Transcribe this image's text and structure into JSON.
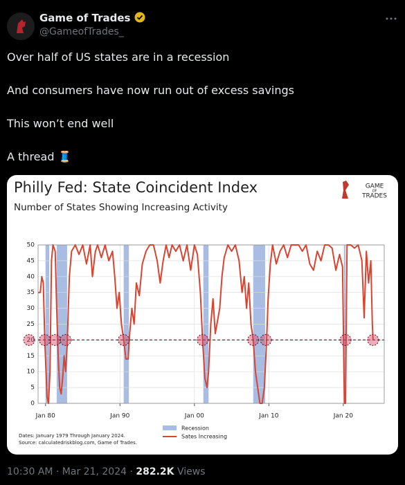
{
  "tweet": {
    "name": "Game of Trades",
    "handle": "@GameofTrades_",
    "lines": [
      "Over half of US states are in a recession",
      "And consumers have now run out of excess savings",
      "This won’t end well",
      "A thread 🧵"
    ],
    "meta": "10:30 AM · Mar 21, 2024 ·",
    "views": "282.2K",
    "views_label": "Views"
  },
  "chart_data": {
    "type": "line",
    "title": "Philly Fed: State Coincident Index",
    "subtitle": "Number of States Showing Increasing Activity",
    "logo": [
      "GAME",
      "OF",
      "TRADES"
    ],
    "notes": [
      "Dates: January 1979 Through January 2024.",
      "Source: calculatedriskblog.com, Game of Trades."
    ],
    "xlim": [
      1979,
      2025.5
    ],
    "ylim": [
      0,
      50
    ],
    "xticks": [
      {
        "value": 1980,
        "label": "Jan 80"
      },
      {
        "value": 1990,
        "label": "Jan 90"
      },
      {
        "value": 2000,
        "label": "Jan 00"
      },
      {
        "value": 2010,
        "label": "Jan 10"
      },
      {
        "value": 2020,
        "label": "Jan 20"
      }
    ],
    "yticks": [
      0,
      5,
      10,
      15,
      20,
      25,
      30,
      35,
      40,
      45,
      50
    ],
    "grid": true,
    "recessions": {
      "name": "Recession",
      "color": "#a9bde3",
      "spans": [
        [
          1980.0,
          1980.5
        ],
        [
          1981.5,
          1982.9
        ],
        [
          1990.5,
          1991.2
        ],
        [
          2001.2,
          2001.9
        ],
        [
          2007.9,
          2009.5
        ],
        [
          2020.1,
          2020.3
        ]
      ]
    },
    "reference_line": 20,
    "highlights": [
      1977.8,
      1979.9,
      1981.3,
      1982.7,
      1990.5,
      2001.1,
      2007.9,
      2009.6,
      2020.3,
      2024.0
    ],
    "series": [
      {
        "name": "Sates Increasing",
        "color": "#d9432f",
        "x": [
          1979.0,
          1979.3,
          1979.5,
          1979.7,
          1979.9,
          1980.2,
          1980.4,
          1980.6,
          1980.8,
          1981.0,
          1981.3,
          1981.5,
          1981.7,
          1981.9,
          1982.1,
          1982.3,
          1982.5,
          1982.7,
          1982.9,
          1983.2,
          1983.5,
          1984.0,
          1984.5,
          1985.0,
          1985.5,
          1986.0,
          1986.3,
          1986.7,
          1987.0,
          1987.5,
          1988.0,
          1988.5,
          1989.0,
          1989.3,
          1989.6,
          1989.9,
          1990.2,
          1990.5,
          1990.8,
          1991.1,
          1991.3,
          1991.6,
          1991.9,
          1992.2,
          1992.6,
          1993.0,
          1993.5,
          1994.0,
          1994.5,
          1995.0,
          1995.4,
          1995.8,
          1996.2,
          1996.6,
          1997.0,
          1997.5,
          1998.0,
          1998.5,
          1999.0,
          1999.5,
          2000.0,
          2000.4,
          2000.8,
          2001.1,
          2001.4,
          2001.7,
          2001.9,
          2002.2,
          2002.5,
          2002.8,
          2003.1,
          2003.4,
          2003.7,
          2004.0,
          2004.5,
          2005.0,
          2005.5,
          2006.0,
          2006.4,
          2006.7,
          2007.0,
          2007.3,
          2007.6,
          2007.9,
          2008.2,
          2008.5,
          2008.8,
          2009.1,
          2009.4,
          2009.7,
          2009.9,
          2010.2,
          2010.5,
          2011.0,
          2011.5,
          2012.0,
          2012.5,
          2013.0,
          2014.0,
          2014.5,
          2015.0,
          2015.5,
          2016.0,
          2016.5,
          2017.0,
          2017.5,
          2018.0,
          2018.5,
          2019.0,
          2019.5,
          2019.9,
          2020.15,
          2020.3,
          2020.5,
          2021.0,
          2021.5,
          2022.0,
          2022.5,
          2022.8,
          2023.1,
          2023.4,
          2023.7,
          2023.9,
          2024.0
        ],
        "values": [
          35,
          35,
          40,
          38,
          20,
          2,
          0,
          10,
          45,
          50,
          48,
          30,
          15,
          5,
          3,
          8,
          15,
          10,
          18,
          40,
          48,
          50,
          47,
          50,
          44,
          50,
          40,
          48,
          50,
          46,
          50,
          45,
          48,
          40,
          30,
          35,
          25,
          20,
          14,
          14,
          22,
          30,
          25,
          38,
          34,
          44,
          48,
          50,
          50,
          45,
          38,
          45,
          50,
          46,
          50,
          48,
          50,
          45,
          50,
          42,
          50,
          47,
          35,
          20,
          8,
          5,
          10,
          25,
          33,
          22,
          26,
          30,
          40,
          46,
          50,
          48,
          50,
          45,
          35,
          40,
          30,
          38,
          25,
          20,
          10,
          5,
          0,
          0,
          5,
          20,
          33,
          44,
          50,
          44,
          48,
          50,
          46,
          50,
          50,
          48,
          50,
          44,
          42,
          48,
          45,
          50,
          50,
          49,
          42,
          47,
          43,
          0,
          0,
          50,
          50,
          49,
          50,
          45,
          27,
          48,
          38,
          45,
          25,
          20
        ]
      }
    ]
  }
}
